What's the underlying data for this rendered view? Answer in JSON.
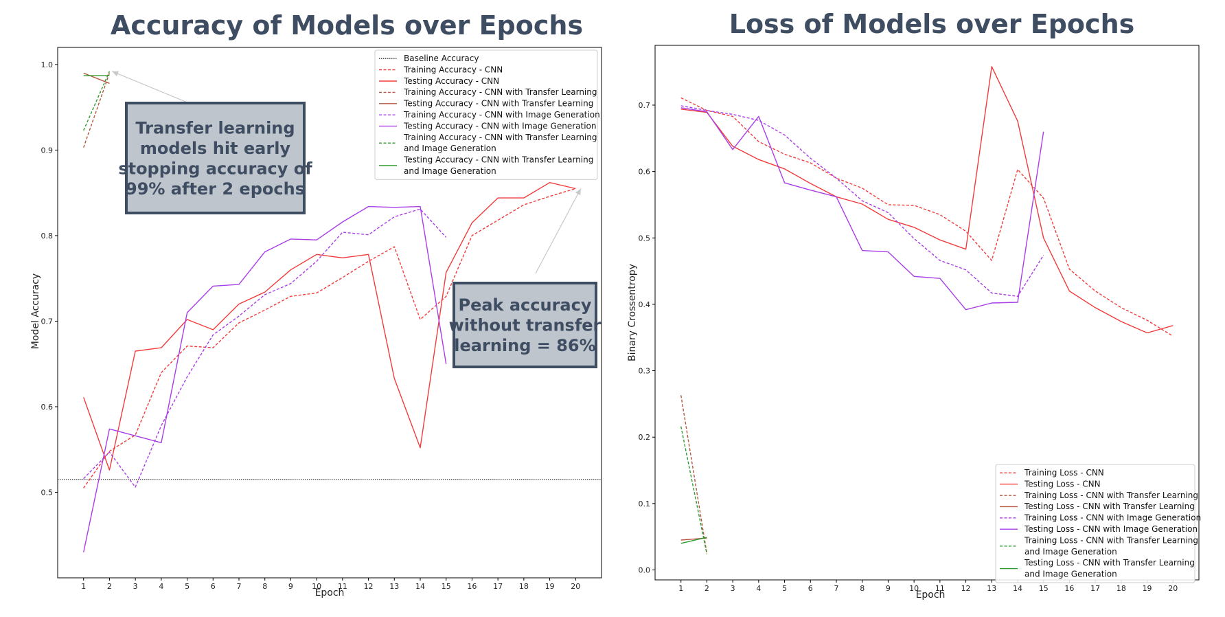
{
  "colors": {
    "cnn": "#f23b3b",
    "tl": "#b5563d",
    "ig": "#a93de8",
    "tlig": "#2e9a2e",
    "baseline": "#333333",
    "title": "#3f4d63",
    "annot_fill": "#bfc5cc",
    "annot_border": "#3f4d63"
  },
  "chart_data": [
    {
      "type": "line",
      "title": "Accuracy of Models over Epochs",
      "xlabel": "Epoch",
      "ylabel": "Model Accuracy",
      "xlim": [
        0,
        21
      ],
      "ylim": [
        0.4,
        1.02
      ],
      "xticks": [
        1,
        2,
        3,
        4,
        5,
        6,
        7,
        8,
        9,
        10,
        11,
        12,
        13,
        14,
        15,
        16,
        17,
        18,
        19,
        20
      ],
      "yticks": [
        0.5,
        0.6,
        0.7,
        0.8,
        0.9,
        1.0
      ],
      "yticklabels": [
        "0.5",
        "0.6",
        "0.7",
        "0.8",
        "0.9",
        "1.0"
      ],
      "legend_position": "top-right",
      "baseline": {
        "name": "Baseline Accuracy",
        "y": 0.515
      },
      "series": [
        {
          "name": "Training Accuracy - CNN",
          "color": "cnn",
          "dash": true,
          "x": [
            1,
            2,
            3,
            4,
            5,
            6,
            7,
            8,
            9,
            10,
            11,
            12,
            13,
            14,
            15,
            16,
            17,
            18,
            19,
            20
          ],
          "y": [
            0.505,
            0.548,
            0.567,
            0.64,
            0.671,
            0.669,
            0.698,
            0.713,
            0.729,
            0.733,
            0.751,
            0.77,
            0.787,
            0.702,
            0.729,
            0.8,
            0.818,
            0.836,
            0.846,
            0.855
          ]
        },
        {
          "name": "Testing Accuracy - CNN",
          "color": "cnn",
          "dash": false,
          "x": [
            1,
            2,
            3,
            4,
            5,
            6,
            7,
            8,
            9,
            10,
            11,
            12,
            13,
            14,
            15,
            16,
            17,
            18,
            19,
            20
          ],
          "y": [
            0.611,
            0.526,
            0.665,
            0.669,
            0.702,
            0.69,
            0.72,
            0.734,
            0.76,
            0.778,
            0.774,
            0.778,
            0.633,
            0.552,
            0.757,
            0.815,
            0.844,
            0.844,
            0.862,
            0.855
          ]
        },
        {
          "name": "Training Accuracy - CNN with Transfer Learning",
          "color": "tl",
          "dash": true,
          "x": [
            1,
            2
          ],
          "y": [
            0.903,
            0.99
          ]
        },
        {
          "name": "Testing Accuracy - CNN with Transfer Learning",
          "color": "tl",
          "dash": false,
          "x": [
            1,
            2
          ],
          "y": [
            0.99,
            0.978
          ]
        },
        {
          "name": "Training Accuracy - CNN with Image Generation",
          "color": "ig",
          "dash": true,
          "x": [
            1,
            2,
            3,
            4,
            5,
            6,
            7,
            8,
            9,
            10,
            11,
            12,
            13,
            14,
            15
          ],
          "y": [
            0.516,
            0.547,
            0.506,
            0.578,
            0.635,
            0.684,
            0.706,
            0.731,
            0.744,
            0.77,
            0.804,
            0.801,
            0.822,
            0.831,
            0.798
          ]
        },
        {
          "name": "Testing Accuracy - CNN with Image Generation",
          "color": "ig",
          "dash": false,
          "x": [
            1,
            2,
            3,
            4,
            5,
            6,
            7,
            8,
            9,
            10,
            11,
            12,
            13,
            14,
            15
          ],
          "y": [
            0.43,
            0.574,
            0.566,
            0.558,
            0.71,
            0.741,
            0.743,
            0.781,
            0.796,
            0.795,
            0.816,
            0.834,
            0.833,
            0.834,
            0.65
          ]
        },
        {
          "name": "Training Accuracy - CNN with Transfer Learning and Image Generation",
          "color": "tlig",
          "dash": true,
          "x": [
            1,
            2
          ],
          "y": [
            0.923,
            0.992
          ]
        },
        {
          "name": "Testing Accuracy - CNN with Transfer Learning and Image Generation",
          "color": "tlig",
          "dash": false,
          "x": [
            1,
            2
          ],
          "y": [
            0.987,
            0.987
          ]
        }
      ],
      "legend": [
        {
          "label": "Baseline Accuracy",
          "style": "baseline"
        },
        {
          "label": "Training Accuracy - CNN",
          "series": 0
        },
        {
          "label": "Testing Accuracy - CNN",
          "series": 1
        },
        {
          "label": "Training Accuracy - CNN with Transfer Learning",
          "series": 2
        },
        {
          "label": "Testing Accuracy - CNN with Transfer Learning",
          "series": 3
        },
        {
          "label": "Training Accuracy - CNN with Image Generation",
          "series": 4
        },
        {
          "label": "Testing Accuracy - CNN with Image Generation",
          "series": 5
        },
        {
          "label": "Training Accuracy - CNN with Transfer Learning\nand Image Generation",
          "series": 6
        },
        {
          "label": "Testing Accuracy - CNN with Transfer Learning\nand Image Generation",
          "series": 7
        }
      ],
      "annotations": [
        {
          "text": [
            "Transfer learning",
            "models hit early",
            "stopping accuracy of",
            "99% after 2 epochs"
          ],
          "arrow_to": {
            "x": 2.1,
            "y": 0.992
          }
        },
        {
          "text": [
            "Peak accuracy",
            "without transfer",
            "learning = 86%"
          ],
          "arrow_to": {
            "x": 20.2,
            "y": 0.855
          }
        }
      ]
    },
    {
      "type": "line",
      "title": "Loss of Models over Epochs",
      "xlabel": "Epoch",
      "ylabel": "Binary Crossentropy",
      "xlim": [
        0,
        21
      ],
      "ylim": [
        -0.015,
        0.79
      ],
      "xticks": [
        1,
        2,
        3,
        4,
        5,
        6,
        7,
        8,
        9,
        10,
        11,
        12,
        13,
        14,
        15,
        16,
        17,
        18,
        19,
        20
      ],
      "yticks": [
        0.0,
        0.1,
        0.2,
        0.3,
        0.4,
        0.5,
        0.6,
        0.7
      ],
      "yticklabels": [
        "0.0",
        "0.1",
        "0.2",
        "0.3",
        "0.4",
        "0.5",
        "0.6",
        "0.7"
      ],
      "legend_position": "bottom-right",
      "series": [
        {
          "name": "Training Loss - CNN",
          "color": "cnn",
          "dash": true,
          "x": [
            1,
            2,
            3,
            4,
            5,
            6,
            7,
            8,
            9,
            10,
            11,
            12,
            13,
            14,
            15,
            16,
            17,
            18,
            19,
            20
          ],
          "y": [
            0.711,
            0.692,
            0.683,
            0.645,
            0.626,
            0.613,
            0.59,
            0.575,
            0.55,
            0.549,
            0.535,
            0.51,
            0.466,
            0.603,
            0.56,
            0.453,
            0.42,
            0.395,
            0.376,
            0.352
          ]
        },
        {
          "name": "Testing Loss - CNN",
          "color": "cnn",
          "dash": false,
          "x": [
            1,
            2,
            3,
            4,
            5,
            6,
            7,
            8,
            9,
            10,
            11,
            12,
            13,
            14,
            15,
            16,
            17,
            18,
            19,
            20
          ],
          "y": [
            0.694,
            0.689,
            0.638,
            0.618,
            0.604,
            0.582,
            0.562,
            0.551,
            0.528,
            0.516,
            0.497,
            0.483,
            0.758,
            0.676,
            0.5,
            0.42,
            0.395,
            0.374,
            0.357,
            0.368
          ]
        },
        {
          "name": "Training Loss - CNN with Transfer Learning",
          "color": "tl",
          "dash": true,
          "x": [
            1,
            2
          ],
          "y": [
            0.263,
            0.025
          ]
        },
        {
          "name": "Testing Loss - CNN with Transfer Learning",
          "color": "tl",
          "dash": false,
          "x": [
            1,
            2
          ],
          "y": [
            0.045,
            0.048
          ]
        },
        {
          "name": "Training Loss - CNN with Image Generation",
          "color": "ig",
          "dash": true,
          "x": [
            1,
            2,
            3,
            4,
            5,
            6,
            7,
            8,
            9,
            10,
            11,
            12,
            13,
            14,
            15
          ],
          "y": [
            0.699,
            0.692,
            0.686,
            0.677,
            0.655,
            0.62,
            0.59,
            0.556,
            0.538,
            0.499,
            0.466,
            0.452,
            0.417,
            0.412,
            0.474
          ]
        },
        {
          "name": "Testing Loss - CNN with Image Generation",
          "color": "ig",
          "dash": false,
          "x": [
            1,
            2,
            3,
            4,
            5,
            6,
            7,
            8,
            9,
            10,
            11,
            12,
            13,
            14,
            15
          ],
          "y": [
            0.696,
            0.69,
            0.633,
            0.683,
            0.583,
            0.572,
            0.562,
            0.481,
            0.479,
            0.442,
            0.439,
            0.392,
            0.402,
            0.403,
            0.66
          ]
        },
        {
          "name": "Training Loss - CNN with Transfer Learning and Image Generation",
          "color": "tlig",
          "dash": true,
          "x": [
            1,
            2
          ],
          "y": [
            0.216,
            0.024
          ]
        },
        {
          "name": "Testing Loss - CNN with Transfer Learning and Image Generation",
          "color": "tlig",
          "dash": false,
          "x": [
            1,
            2
          ],
          "y": [
            0.04,
            0.049
          ]
        }
      ],
      "legend": [
        {
          "label": "Training Loss - CNN",
          "series": 0
        },
        {
          "label": "Testing Loss - CNN",
          "series": 1
        },
        {
          "label": "Training Loss - CNN with Transfer Learning",
          "series": 2
        },
        {
          "label": "Testing Loss - CNN with Transfer Learning",
          "series": 3
        },
        {
          "label": "Training Loss - CNN with Image Generation",
          "series": 4
        },
        {
          "label": "Testing Loss - CNN with Image Generation",
          "series": 5
        },
        {
          "label": "Training Loss - CNN with Transfer Learning\nand Image Generation",
          "series": 6
        },
        {
          "label": "Testing Loss - CNN with Transfer Learning\nand Image Generation",
          "series": 7
        }
      ]
    }
  ]
}
